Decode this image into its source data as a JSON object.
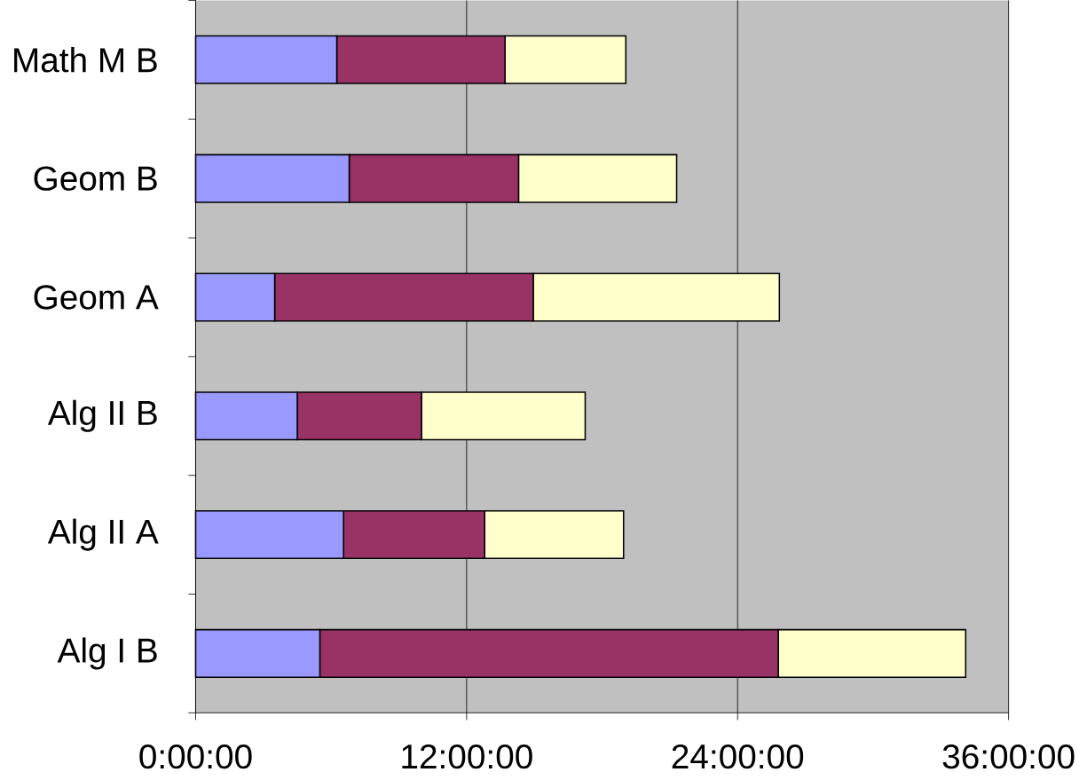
{
  "chart_data": {
    "type": "bar",
    "orientation": "horizontal",
    "stacked": true,
    "grid": "x",
    "categories": [
      "Math M B",
      "Geom B",
      "Geom A",
      "Alg II B",
      "Alg II A",
      "Alg I B"
    ],
    "series": [
      {
        "color": "#9999ff",
        "values": [
          6.25,
          6.8,
          3.5,
          4.5,
          6.55,
          5.5
        ]
      },
      {
        "color": "#993366",
        "values": [
          7.45,
          7.5,
          11.45,
          5.5,
          6.25,
          20.3
        ]
      },
      {
        "color": "#ffffcc",
        "values": [
          5.35,
          7.0,
          10.9,
          7.25,
          6.15,
          8.3
        ]
      }
    ],
    "xlim": [
      0,
      36
    ],
    "xticks": [
      {
        "value": 0,
        "label": "0:00:00"
      },
      {
        "value": 12,
        "label": "12:00:00"
      },
      {
        "value": 24,
        "label": "24:00:00"
      },
      {
        "value": 36,
        "label": "36:00:00"
      }
    ]
  }
}
